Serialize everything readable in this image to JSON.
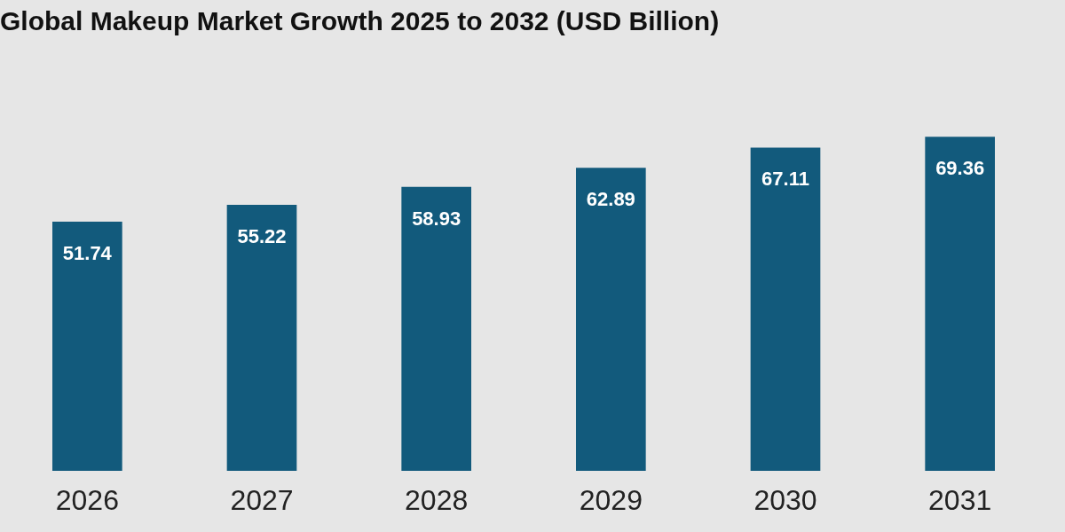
{
  "chart_data": {
    "type": "bar",
    "title": "Global Makeup Market Growth 2025 to 2032 (USD Billion)",
    "categories": [
      "2026",
      "2027",
      "2028",
      "2029",
      "2030",
      "2031"
    ],
    "values": [
      51.74,
      55.22,
      58.93,
      62.89,
      67.11,
      69.36
    ],
    "color": "#125a7c",
    "data_labels": true
  }
}
